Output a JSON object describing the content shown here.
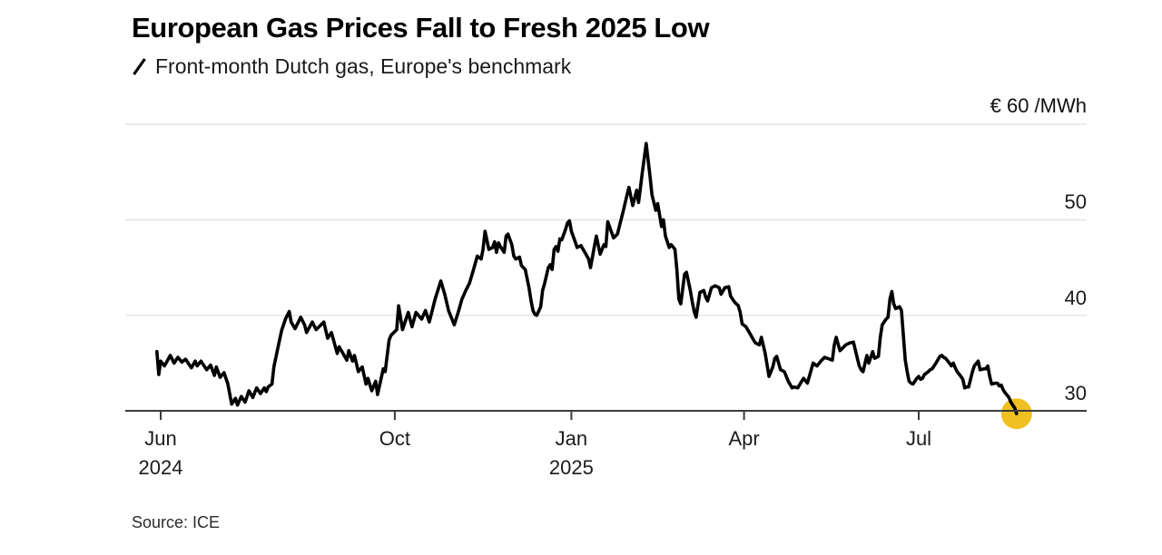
{
  "header": {
    "title": "European Gas Prices Fall to Fresh 2025 Low",
    "legend_label": "Front-month Dutch gas, Europe's benchmark"
  },
  "footer": {
    "source": "Source: ICE"
  },
  "chart_data": {
    "type": "line",
    "title": "European Gas Prices Fall to Fresh 2025 Low",
    "subtitle": "Front-month Dutch gas, Europe's benchmark",
    "legend_position": "top-left",
    "grid": true,
    "colors": {
      "line": "#000000",
      "dot": "#F0C020",
      "gridline": "#e8e8e8",
      "axis": "#3c3c3c"
    },
    "y_axis": {
      "unit_label": "€ 60 /MWh",
      "unit": "€/MWh",
      "gridline_values": [
        40,
        50,
        60
      ],
      "label_values": [
        50,
        40,
        30
      ],
      "baseline_value": 30,
      "range_shown": [
        28.5,
        61
      ]
    },
    "x_axis": {
      "note": "day = days since 2024-06-01 tick",
      "ticks": [
        {
          "label": "Jun",
          "year": "2024",
          "day": 0
        },
        {
          "label": "Oct",
          "day": 122
        },
        {
          "label": "Jan",
          "year": "2025",
          "day": 214
        },
        {
          "label": "Apr",
          "day": 304
        },
        {
          "label": "Jul",
          "day": 395
        }
      ]
    },
    "endpoint_marker": {
      "color": "#F0C020",
      "value": 29.7
    },
    "series": [
      {
        "name": "Front-month Dutch gas, Europe's benchmark",
        "color": "#000000",
        "points": [
          [
            -2,
            36.2
          ],
          [
            -1,
            33.8
          ],
          [
            0,
            35.2
          ],
          [
            2,
            34.7
          ],
          [
            5,
            35.8
          ],
          [
            7,
            35.0
          ],
          [
            9,
            35.6
          ],
          [
            11,
            35.1
          ],
          [
            13,
            35.4
          ],
          [
            16,
            34.5
          ],
          [
            18,
            35.2
          ],
          [
            19,
            34.7
          ],
          [
            21,
            35.2
          ],
          [
            24,
            34.3
          ],
          [
            26,
            34.8
          ],
          [
            28,
            33.7
          ],
          [
            29,
            34.6
          ],
          [
            31,
            33.5
          ],
          [
            33,
            34.0
          ],
          [
            35,
            32.8
          ],
          [
            37,
            30.7
          ],
          [
            39,
            31.3
          ],
          [
            40,
            30.6
          ],
          [
            42,
            31.5
          ],
          [
            44,
            30.9
          ],
          [
            46,
            32.1
          ],
          [
            48,
            31.4
          ],
          [
            50,
            32.4
          ],
          [
            52,
            31.8
          ],
          [
            54,
            32.4
          ],
          [
            55,
            32.0
          ],
          [
            56,
            32.5
          ],
          [
            58,
            32.8
          ],
          [
            59,
            34.6
          ],
          [
            61,
            36.5
          ],
          [
            63,
            38.4
          ],
          [
            65,
            39.6
          ],
          [
            67,
            40.4
          ],
          [
            68,
            39.3
          ],
          [
            70,
            38.6
          ],
          [
            73,
            39.8
          ],
          [
            75,
            39.0
          ],
          [
            76,
            38.2
          ],
          [
            79,
            39.3
          ],
          [
            81,
            38.5
          ],
          [
            85,
            39.3
          ],
          [
            87,
            37.6
          ],
          [
            89,
            38.2
          ],
          [
            92,
            36.0
          ],
          [
            93,
            36.7
          ],
          [
            97,
            35.3
          ],
          [
            98,
            36.3
          ],
          [
            100,
            35.2
          ],
          [
            101,
            35.8
          ],
          [
            103,
            34.1
          ],
          [
            105,
            34.6
          ],
          [
            107,
            32.8
          ],
          [
            108,
            33.4
          ],
          [
            110,
            32.1
          ],
          [
            112,
            33.1
          ],
          [
            113,
            31.7
          ],
          [
            116,
            34.4
          ],
          [
            117,
            34.1
          ],
          [
            119,
            37.4
          ],
          [
            120,
            37.9
          ],
          [
            123,
            38.5
          ],
          [
            124,
            41.0
          ],
          [
            126,
            38.5
          ],
          [
            129,
            40.3
          ],
          [
            131,
            38.8
          ],
          [
            133,
            40.3
          ],
          [
            136,
            39.6
          ],
          [
            138,
            40.5
          ],
          [
            140,
            39.3
          ],
          [
            143,
            41.7
          ],
          [
            146,
            43.6
          ],
          [
            148,
            42.2
          ],
          [
            150,
            40.5
          ],
          [
            153,
            39.0
          ],
          [
            155,
            40.3
          ],
          [
            157,
            41.7
          ],
          [
            159,
            42.6
          ],
          [
            161,
            43.4
          ],
          [
            163,
            44.8
          ],
          [
            165,
            46.2
          ],
          [
            167,
            45.9
          ],
          [
            168,
            46.9
          ],
          [
            169,
            48.8
          ],
          [
            171,
            46.9
          ],
          [
            173,
            47.1
          ],
          [
            174,
            47.7
          ],
          [
            175,
            46.6
          ],
          [
            176,
            47.6
          ],
          [
            177,
            47.2
          ],
          [
            179,
            46.6
          ],
          [
            180,
            48.3
          ],
          [
            181,
            48.5
          ],
          [
            183,
            47.4
          ],
          [
            184,
            46.2
          ],
          [
            185,
            45.9
          ],
          [
            187,
            46.1
          ],
          [
            188,
            45.2
          ],
          [
            190,
            44.8
          ],
          [
            192,
            42.8
          ],
          [
            193,
            41.5
          ],
          [
            194,
            40.5
          ],
          [
            195,
            40.1
          ],
          [
            196,
            40.0
          ],
          [
            198,
            40.9
          ],
          [
            199,
            42.6
          ],
          [
            200,
            43.3
          ],
          [
            202,
            45.0
          ],
          [
            203,
            45.3
          ],
          [
            204,
            44.8
          ],
          [
            205,
            46.9
          ],
          [
            206,
            47.2
          ],
          [
            207,
            46.7
          ],
          [
            208,
            48.0
          ],
          [
            209,
            47.9
          ],
          [
            211,
            49.0
          ],
          [
            212,
            49.7
          ],
          [
            213,
            49.9
          ],
          [
            214,
            48.8
          ],
          [
            216,
            47.7
          ],
          [
            217,
            47.1
          ],
          [
            219,
            47.3
          ],
          [
            221,
            46.6
          ],
          [
            223,
            45.9
          ],
          [
            224,
            45.0
          ],
          [
            226,
            47.2
          ],
          [
            227,
            48.3
          ],
          [
            229,
            46.4
          ],
          [
            231,
            47.4
          ],
          [
            232,
            47.2
          ],
          [
            233,
            49.8
          ],
          [
            236,
            48.1
          ],
          [
            238,
            48.5
          ],
          [
            241,
            50.9
          ],
          [
            243,
            52.6
          ],
          [
            244,
            53.4
          ],
          [
            246,
            51.5
          ],
          [
            248,
            53.1
          ],
          [
            249,
            51.8
          ],
          [
            251,
            55.0
          ],
          [
            253,
            58.0
          ],
          [
            255,
            54.5
          ],
          [
            256,
            52.6
          ],
          [
            258,
            51.0
          ],
          [
            259,
            51.7
          ],
          [
            261,
            49.3
          ],
          [
            262,
            50.0
          ],
          [
            263,
            48.3
          ],
          [
            265,
            47.1
          ],
          [
            266,
            47.4
          ],
          [
            268,
            46.9
          ],
          [
            269,
            44.8
          ],
          [
            270,
            41.7
          ],
          [
            271,
            41.2
          ],
          [
            273,
            44.3
          ],
          [
            274,
            44.5
          ],
          [
            276,
            42.6
          ],
          [
            277,
            41.4
          ],
          [
            278,
            40.4
          ],
          [
            279,
            39.8
          ],
          [
            281,
            42.4
          ],
          [
            283,
            42.6
          ],
          [
            284,
            41.9
          ],
          [
            285,
            41.5
          ],
          [
            287,
            42.9
          ],
          [
            289,
            43.1
          ],
          [
            291,
            42.9
          ],
          [
            292,
            42.2
          ],
          [
            294,
            42.9
          ],
          [
            296,
            43.0
          ],
          [
            297,
            42.0
          ],
          [
            299,
            41.4
          ],
          [
            301,
            41.0
          ],
          [
            302,
            40.3
          ],
          [
            303,
            39.1
          ],
          [
            305,
            38.8
          ],
          [
            307,
            38.1
          ],
          [
            309,
            37.4
          ],
          [
            310,
            37.1
          ],
          [
            312,
            36.9
          ],
          [
            313,
            37.7
          ],
          [
            315,
            36.0
          ],
          [
            317,
            33.6
          ],
          [
            319,
            34.6
          ],
          [
            320,
            35.5
          ],
          [
            321,
            35.7
          ],
          [
            323,
            34.3
          ],
          [
            325,
            34.1
          ],
          [
            327,
            33.1
          ],
          [
            329,
            32.4
          ],
          [
            330,
            32.5
          ],
          [
            332,
            32.4
          ],
          [
            334,
            33.1
          ],
          [
            335,
            33.4
          ],
          [
            337,
            32.9
          ],
          [
            339,
            34.3
          ],
          [
            340,
            35.0
          ],
          [
            342,
            34.7
          ],
          [
            344,
            35.2
          ],
          [
            346,
            35.6
          ],
          [
            350,
            35.3
          ],
          [
            351,
            36.9
          ],
          [
            352,
            37.7
          ],
          [
            354,
            36.3
          ],
          [
            356,
            36.7
          ],
          [
            357,
            36.9
          ],
          [
            359,
            37.1
          ],
          [
            361,
            37.2
          ],
          [
            363,
            35.5
          ],
          [
            364,
            34.7
          ],
          [
            365,
            34.3
          ],
          [
            366,
            34.1
          ],
          [
            368,
            35.8
          ],
          [
            369,
            35.0
          ],
          [
            371,
            36.2
          ],
          [
            372,
            35.5
          ],
          [
            374,
            35.7
          ],
          [
            375,
            37.7
          ],
          [
            376,
            39.0
          ],
          [
            378,
            39.6
          ],
          [
            379,
            39.8
          ],
          [
            380,
            41.7
          ],
          [
            381,
            42.5
          ],
          [
            382,
            41.2
          ],
          [
            383,
            40.7
          ],
          [
            385,
            40.9
          ],
          [
            386,
            40.5
          ],
          [
            387,
            37.9
          ],
          [
            388,
            35.3
          ],
          [
            389,
            34.1
          ],
          [
            390,
            33.1
          ],
          [
            391,
            32.9
          ],
          [
            392,
            32.8
          ],
          [
            394,
            33.4
          ],
          [
            395,
            33.6
          ],
          [
            396,
            33.3
          ],
          [
            397,
            33.4
          ],
          [
            398,
            33.8
          ],
          [
            400,
            34.1
          ],
          [
            401,
            34.3
          ],
          [
            402,
            34.4
          ],
          [
            404,
            35.0
          ],
          [
            406,
            35.7
          ],
          [
            407,
            35.8
          ],
          [
            408,
            35.6
          ],
          [
            409,
            35.5
          ],
          [
            411,
            35.0
          ],
          [
            412,
            34.7
          ],
          [
            413,
            35.0
          ],
          [
            414,
            34.5
          ],
          [
            415,
            34.1
          ],
          [
            417,
            33.6
          ],
          [
            418,
            33.3
          ],
          [
            419,
            32.4
          ],
          [
            420,
            32.5
          ],
          [
            421,
            32.5
          ],
          [
            423,
            34.1
          ],
          [
            424,
            34.7
          ],
          [
            426,
            35.2
          ],
          [
            427,
            34.3
          ],
          [
            429,
            34.4
          ],
          [
            430,
            34.4
          ],
          [
            431,
            34.7
          ],
          [
            432,
            33.6
          ],
          [
            433,
            32.8
          ],
          [
            435,
            32.9
          ],
          [
            436,
            32.9
          ],
          [
            437,
            32.6
          ],
          [
            438,
            32.7
          ],
          [
            439,
            32.2
          ],
          [
            440,
            31.9
          ],
          [
            442,
            31.4
          ],
          [
            443,
            30.9
          ],
          [
            444,
            30.6
          ],
          [
            445,
            30.3
          ],
          [
            446,
            29.7
          ]
        ]
      }
    ]
  }
}
